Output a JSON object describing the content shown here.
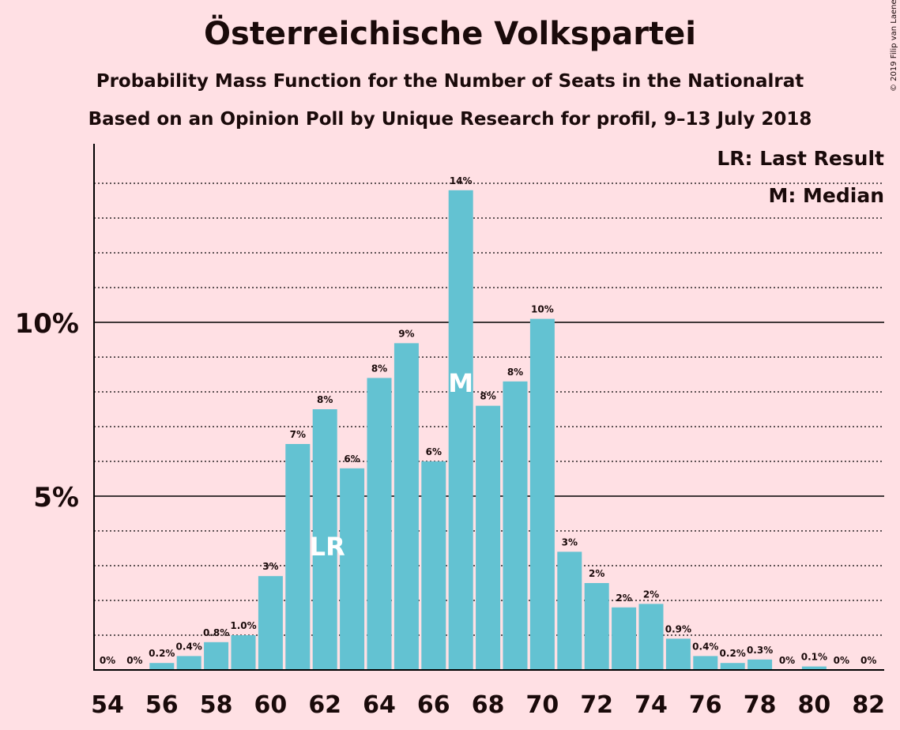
{
  "title": "Österreichische Volkspartei",
  "subtitle": "Probability Mass Function for the Number of Seats in the Nationalrat",
  "subtitle2": "Based on an Opinion Poll by Unique Research for profil, 9–13 July 2018",
  "copyright": "© 2019 Filip van Laenen",
  "legend": {
    "last_result": "LR: Last Result",
    "median": "M: Median"
  },
  "colors": {
    "bar": "#63c2d2",
    "background": "#ffe0e4",
    "text": "#1a0a0a"
  },
  "chart_data": {
    "type": "bar",
    "x": [
      54,
      55,
      56,
      57,
      58,
      59,
      60,
      61,
      62,
      63,
      64,
      65,
      66,
      67,
      68,
      69,
      70,
      71,
      72,
      73,
      74,
      75,
      76,
      77,
      78,
      79,
      80,
      81,
      82
    ],
    "values": [
      0,
      0,
      0.2,
      0.4,
      0.8,
      1.0,
      2.7,
      6.5,
      7.5,
      5.8,
      8.4,
      9.4,
      6.0,
      13.8,
      7.6,
      8.3,
      10.1,
      3.4,
      2.5,
      1.8,
      1.9,
      0.9,
      0.4,
      0.2,
      0.3,
      0,
      0.1,
      0,
      0
    ],
    "labels": [
      "0%",
      "0%",
      "0.2%",
      "0.4%",
      "0.8%",
      "1.0%",
      "3%",
      "7%",
      "8%",
      "6%",
      "8%",
      "9%",
      "6%",
      "14%",
      "8%",
      "8%",
      "10%",
      "3%",
      "2%",
      "2%",
      "2%",
      "0.9%",
      "0.4%",
      "0.2%",
      "0.3%",
      "0%",
      "0.1%",
      "0%",
      "0%"
    ],
    "x_tick_labels": [
      "54",
      "56",
      "58",
      "60",
      "62",
      "64",
      "66",
      "68",
      "70",
      "72",
      "74",
      "76",
      "78",
      "80",
      "82"
    ],
    "y_tick_labels": [
      {
        "value": 5,
        "label": "5%"
      },
      {
        "value": 10,
        "label": "10%"
      }
    ],
    "ylim": [
      0,
      15
    ],
    "grid": true,
    "annotations": [
      {
        "x": 62,
        "label": "LR"
      },
      {
        "x": 67,
        "label": "M"
      }
    ],
    "legend_position": "top-right"
  }
}
